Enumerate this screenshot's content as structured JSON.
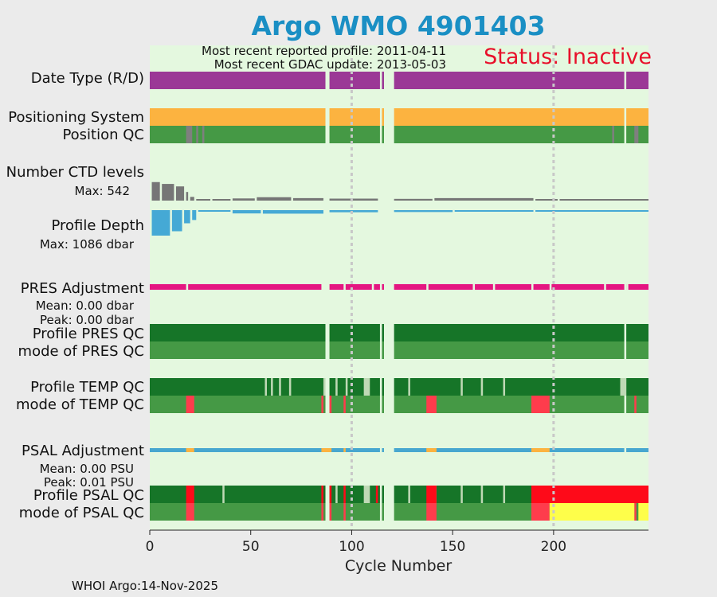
{
  "chart_data": {
    "type": "argo-float-status",
    "title": "Argo WMO 4901403",
    "most_recent_profile_label": "Most recent reported profile: 2011-04-11",
    "most_recent_gdac_label": "Most recent GDAC update: 2013-05-03",
    "status": "Status: Inactive",
    "xlabel": "Cycle Number",
    "xlim": [
      0,
      247
    ],
    "xticks": [
      0,
      50,
      100,
      150,
      200
    ],
    "vlines": [
      100,
      200
    ],
    "missing_cycles": [
      87,
      88,
      114,
      116,
      117,
      118,
      119,
      120,
      235
    ],
    "footer": "WHOI Argo:14-Nov-2025",
    "colors": {
      "background": "#e4f8df",
      "data_type": "#9b3896",
      "positioning": "#fcb340",
      "qc_good": "#459945",
      "qc_dark_good": "#167528",
      "qc_pale": "#bfd9b5",
      "qc_bad": "#fe3c4c",
      "qc_red": "#fe0a19",
      "qc_yellow": "#fefe4a",
      "qc_gray": "#7f7f7f",
      "ctd": "#767676",
      "depth": "#45a9d5",
      "pres_adj": "#e41681",
      "psal_adj": "#47a7cf",
      "psal_adj_alt": "#fcb340",
      "label_blue": "#1a8fc4",
      "label_pink": "#e4108a",
      "status_red": "#e8102a",
      "title_blue": "#1a8fc4"
    },
    "rows": [
      {
        "label": "Date Type (R/D)"
      },
      {
        "label": "Positioning System"
      },
      {
        "label": "Position QC"
      },
      {
        "label": "Number CTD levels",
        "sub": "Max: 542",
        "max_value": 542,
        "levels_segments": [
          [
            1,
            5,
            300
          ],
          [
            6,
            12,
            270
          ],
          [
            13,
            17,
            230
          ],
          [
            18,
            19,
            140
          ],
          [
            20,
            22,
            60
          ],
          [
            23,
            30,
            18
          ],
          [
            31,
            40,
            22
          ],
          [
            41,
            52,
            35
          ],
          [
            53,
            70,
            55
          ],
          [
            71,
            86,
            40
          ],
          [
            89,
            113,
            32
          ],
          [
            121,
            140,
            28
          ],
          [
            141,
            190,
            40
          ],
          [
            191,
            202,
            8
          ],
          [
            203,
            247,
            14
          ]
        ]
      },
      {
        "label": "Profile Depth",
        "sub": "Max: 1086 dbar",
        "max_value": 1086,
        "depth_segments": [
          [
            1,
            10,
            1086
          ],
          [
            11,
            16,
            900
          ],
          [
            17,
            20,
            560
          ],
          [
            21,
            23,
            420
          ],
          [
            24,
            40,
            60
          ],
          [
            41,
            55,
            140
          ],
          [
            56,
            86,
            150
          ],
          [
            89,
            113,
            90
          ],
          [
            121,
            150,
            80
          ],
          [
            151,
            190,
            60
          ],
          [
            191,
            247,
            20
          ]
        ]
      },
      {
        "label": "PRES Adjustment",
        "sub1": "Mean: 0.00 dbar",
        "sub2": "Peak: 0.00 dbar"
      },
      {
        "label": "Profile PRES QC"
      },
      {
        "label": "mode of PRES QC"
      },
      {
        "label": "Profile TEMP QC"
      },
      {
        "label": "mode of TEMP QC"
      },
      {
        "label": "PSAL Adjustment",
        "sub1": "Mean: 0.00 PSU",
        "sub2": "Peak: 0.01 PSU"
      },
      {
        "label": "Profile PSAL QC"
      },
      {
        "label": "mode of PSAL QC"
      }
    ],
    "qc_segments": {
      "position_qc_gray": [
        [
          18,
          21
        ],
        [
          23,
          24
        ],
        [
          26,
          27
        ],
        [
          229,
          230
        ],
        [
          240,
          242
        ]
      ],
      "temp_profile_pale": [
        [
          57,
          58
        ],
        [
          60,
          61
        ],
        [
          64,
          65
        ],
        [
          69,
          70
        ],
        [
          86,
          87
        ],
        [
          92,
          93
        ],
        [
          97,
          98
        ],
        [
          106,
          109
        ],
        [
          128,
          129
        ],
        [
          154,
          155
        ],
        [
          164,
          165
        ],
        [
          175,
          176
        ],
        [
          233,
          236
        ]
      ],
      "temp_mode_red": [
        [
          18,
          22
        ],
        [
          85,
          86
        ],
        [
          89,
          90
        ],
        [
          96,
          97
        ],
        [
          137,
          142
        ],
        [
          189,
          198
        ],
        [
          240,
          241
        ]
      ],
      "psal_profile_pale": [
        [
          36,
          37
        ],
        [
          92,
          93
        ],
        [
          106,
          109
        ],
        [
          128,
          129
        ],
        [
          141,
          142
        ],
        [
          154,
          155
        ],
        [
          164,
          165
        ],
        [
          175,
          176
        ]
      ],
      "psal_profile_red": [
        [
          18,
          22
        ],
        [
          85,
          86
        ],
        [
          89,
          90
        ],
        [
          96,
          97
        ],
        [
          112,
          113
        ],
        [
          137,
          142
        ],
        [
          189,
          247
        ]
      ],
      "psal_mode_red": [
        [
          18,
          22
        ],
        [
          85,
          86
        ],
        [
          89,
          90
        ],
        [
          96,
          97
        ],
        [
          137,
          142
        ],
        [
          189,
          198
        ],
        [
          240,
          241
        ]
      ],
      "psal_mode_yellow": [
        [
          198,
          240
        ],
        [
          242,
          247
        ]
      ]
    },
    "psal_adjustment_gaps": [
      [
        18,
        22
      ],
      [
        85,
        90
      ],
      [
        96,
        97
      ],
      [
        137,
        142
      ],
      [
        189,
        198
      ]
    ],
    "pres_adjustment_gaps": [
      [
        18,
        19
      ],
      [
        85,
        89
      ],
      [
        96,
        97
      ],
      [
        110,
        111
      ],
      [
        137,
        138
      ],
      [
        160,
        161
      ],
      [
        170,
        171
      ],
      [
        189,
        190
      ],
      [
        198,
        199
      ],
      [
        225,
        226
      ],
      [
        236,
        237
      ]
    ]
  }
}
